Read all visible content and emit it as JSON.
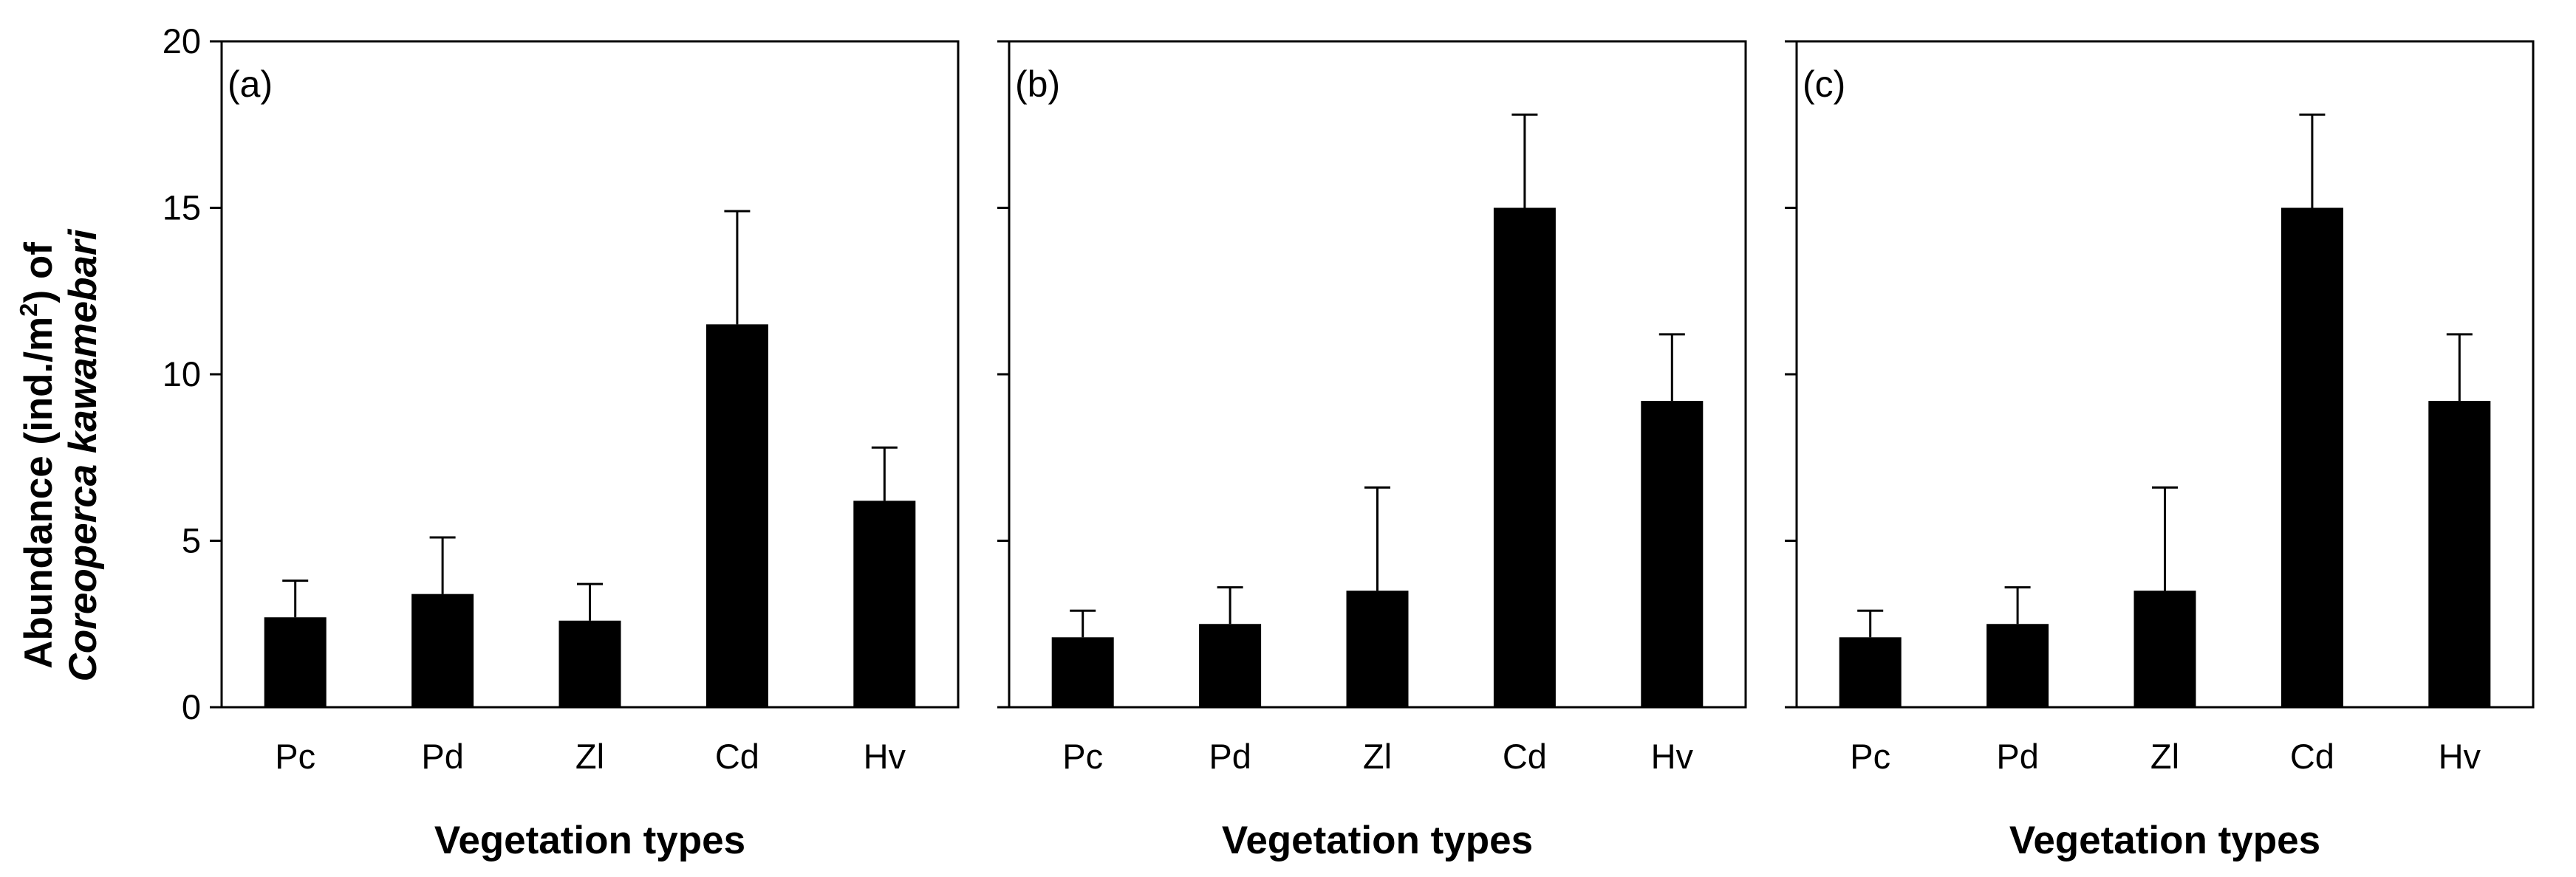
{
  "figure": {
    "ylabel_line1_prefix": "Abundance (ind./m",
    "ylabel_line1_sup": "2",
    "ylabel_line1_suffix": ") of",
    "ylabel_line2": "Coreoperca kawamebari"
  },
  "chart_data": [
    {
      "type": "bar",
      "panel_label": "(a)",
      "categories": [
        "Pc",
        "Pd",
        "Zl",
        "Cd",
        "Hv"
      ],
      "values": [
        2.7,
        3.4,
        2.6,
        11.5,
        6.2
      ],
      "error_upper": [
        1.1,
        1.7,
        1.1,
        3.4,
        1.6
      ],
      "xlabel": "Vegetation types",
      "ylim": [
        0,
        20
      ],
      "yticks": [
        "0",
        "5",
        "10",
        "15",
        "20"
      ]
    },
    {
      "type": "bar",
      "panel_label": "(b)",
      "categories": [
        "Pc",
        "Pd",
        "Zl",
        "Cd",
        "Hv"
      ],
      "values": [
        2.1,
        2.5,
        3.5,
        15.0,
        9.2
      ],
      "error_upper": [
        0.8,
        1.1,
        3.1,
        2.8,
        2.0
      ],
      "xlabel": "Vegetation types",
      "ylim": [
        0,
        20
      ]
    },
    {
      "type": "bar",
      "panel_label": "(c)",
      "categories": [
        "Pc",
        "Pd",
        "Zl",
        "Cd",
        "Hv"
      ],
      "values": [
        2.1,
        2.5,
        3.5,
        15.0,
        9.2
      ],
      "error_upper": [
        0.8,
        1.1,
        3.1,
        2.8,
        2.0
      ],
      "xlabel": "Vegetation types",
      "ylim": [
        0,
        20
      ]
    }
  ]
}
